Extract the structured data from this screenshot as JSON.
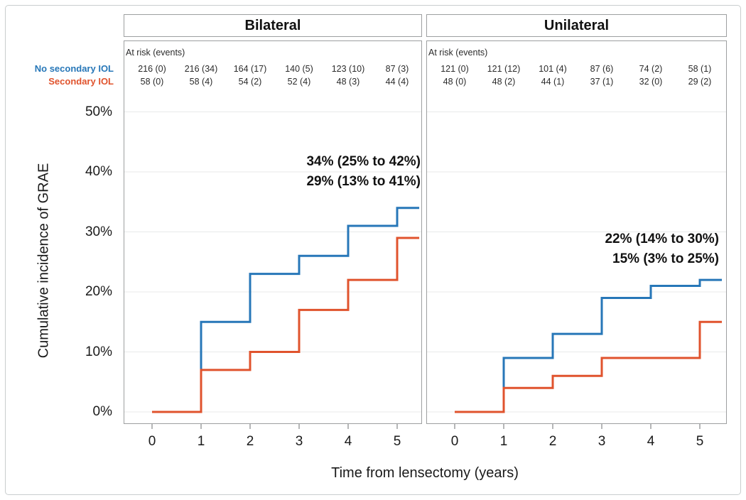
{
  "window": {
    "background_color": "#ffffff",
    "frame_border_color": "#c9cdce"
  },
  "axes": {
    "y_title": "Cumulative incidence of GRAE",
    "x_title": "Time from lensectomy (years)",
    "y_tick_labels": [
      "0%",
      "10%",
      "20%",
      "30%",
      "40%",
      "50%"
    ],
    "x_tick_labels": [
      "0",
      "1",
      "2",
      "3",
      "4",
      "5"
    ]
  },
  "legend": {
    "items": [
      {
        "label": "No secondary IOL",
        "color": "#2777b8"
      },
      {
        "label": "Secondary IOL",
        "color": "#e0532d"
      }
    ]
  },
  "at_risk_header": "At risk (events)",
  "chart_data": {
    "type": "line",
    "variant": "step-cumulative-incidence",
    "title": "",
    "xlabel": "Time from lensectomy (years)",
    "ylabel": "Cumulative incidence of GRAE",
    "x_ticks": [
      0,
      1,
      2,
      3,
      4,
      5
    ],
    "y_ticks_pct": [
      0,
      10,
      20,
      30,
      40,
      50
    ],
    "xlim": [
      -0.58,
      5.55
    ],
    "ylim_pct": [
      0,
      50
    ],
    "grid": true,
    "gridline_color": "#e8eaea",
    "panel_border_color": "#9d9fa0",
    "panels": [
      {
        "title": "Bilateral",
        "series": [
          {
            "name": "No secondary IOL",
            "color": "#2777b8",
            "step_points": [
              [
                0,
                0
              ],
              [
                1,
                15
              ],
              [
                2,
                23
              ],
              [
                3,
                26
              ],
              [
                4,
                31
              ],
              [
                5,
                34
              ]
            ],
            "end_x": 5.45
          },
          {
            "name": "Secondary IOL",
            "color": "#e0532d",
            "step_points": [
              [
                0,
                0
              ],
              [
                1,
                7
              ],
              [
                2,
                10
              ],
              [
                3,
                17
              ],
              [
                4,
                22
              ],
              [
                5,
                29
              ]
            ],
            "end_x": 5.45
          }
        ],
        "annotations": [
          "34% (25% to 42%)",
          "29% (13% to 41%)"
        ],
        "at_risk_rows": [
          {
            "name": "No secondary IOL",
            "values": [
              "216 (0)",
              "216 (34)",
              "164 (17)",
              "140 (5)",
              "123 (10)",
              "87 (3)"
            ]
          },
          {
            "name": "Secondary IOL",
            "values": [
              "58 (0)",
              "58 (4)",
              "54 (2)",
              "52 (4)",
              "48 (3)",
              "44 (4)"
            ]
          }
        ]
      },
      {
        "title": "Unilateral",
        "series": [
          {
            "name": "No secondary IOL",
            "color": "#2777b8",
            "step_points": [
              [
                0,
                0
              ],
              [
                1,
                9
              ],
              [
                2,
                13
              ],
              [
                3,
                19
              ],
              [
                4,
                21
              ],
              [
                5,
                22
              ]
            ],
            "end_x": 5.45
          },
          {
            "name": "Secondary IOL",
            "color": "#e0532d",
            "step_points": [
              [
                0,
                0
              ],
              [
                1,
                4
              ],
              [
                2,
                6
              ],
              [
                3,
                9
              ],
              [
                5,
                15
              ]
            ],
            "end_x": 5.45
          }
        ],
        "annotations": [
          "22% (14% to 30%)",
          "15% (3% to 25%)"
        ],
        "at_risk_rows": [
          {
            "name": "No secondary IOL",
            "values": [
              "121 (0)",
              "121 (12)",
              "101 (4)",
              "87 (6)",
              "74 (2)",
              "58 (1)"
            ]
          },
          {
            "name": "Secondary IOL",
            "values": [
              "48 (0)",
              "48 (2)",
              "44 (1)",
              "37 (1)",
              "32 (0)",
              "29 (2)"
            ]
          }
        ]
      }
    ]
  }
}
